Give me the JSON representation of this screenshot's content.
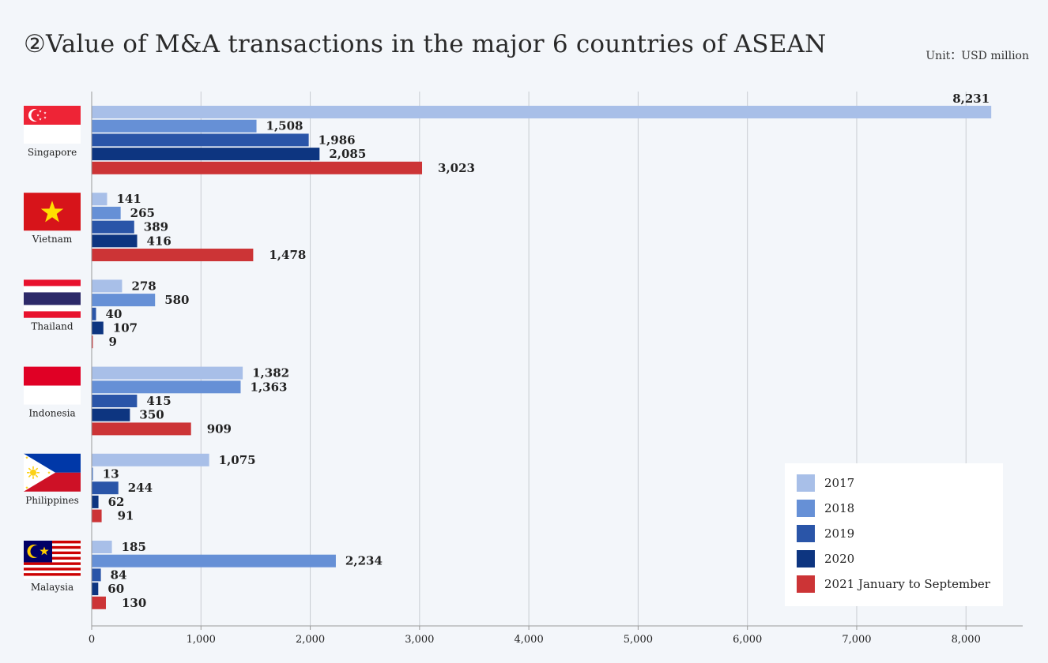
{
  "title": "②Value of M&A transactions in the major 6 countries of ASEAN",
  "unit": "Unit：USD million",
  "colors": {
    "2017": "#a8bfe8",
    "2018": "#6690d6",
    "2019": "#2a55a8",
    "2020": "#0d3580",
    "2021": "#cc3436",
    "grid": "#c8ccd2",
    "axis": "#999999"
  },
  "chart_data": {
    "type": "bar",
    "orientation": "horizontal",
    "title": "②Value of M&A transactions in the major 6 countries of ASEAN",
    "xlabel": "",
    "ylabel": "",
    "unit": "Unit：USD million",
    "xlim": [
      0,
      8500
    ],
    "xticks": [
      0,
      1000,
      2000,
      3000,
      4000,
      5000,
      6000,
      7000,
      8000
    ],
    "xtick_labels": [
      "0",
      "1,000",
      "2,000",
      "3,000",
      "4,000",
      "5,000",
      "6,000",
      "7,000",
      "8,000"
    ],
    "grid": true,
    "legend_position": "bottom-right",
    "categories": [
      "Singapore",
      "Vietnam",
      "Thailand",
      "Indonesia",
      "Philippines",
      "Malaysia"
    ],
    "series": [
      {
        "name": "2017",
        "color": "#a8bfe8",
        "values": [
          8231,
          141,
          278,
          1382,
          1075,
          185
        ],
        "labels": [
          "8,231",
          "141",
          "278",
          "1,382",
          "1,075",
          "185"
        ]
      },
      {
        "name": "2018",
        "color": "#6690d6",
        "values": [
          1508,
          265,
          580,
          1363,
          13,
          2234
        ],
        "labels": [
          "1,508",
          "265",
          "580",
          "1,363",
          "13",
          "2,234"
        ]
      },
      {
        "name": "2019",
        "color": "#2a55a8",
        "values": [
          1986,
          389,
          40,
          415,
          244,
          84
        ],
        "labels": [
          "1,986",
          "389",
          "40",
          "415",
          "244",
          "84"
        ]
      },
      {
        "name": "2020",
        "color": "#0d3580",
        "values": [
          2085,
          416,
          107,
          350,
          62,
          60
        ],
        "labels": [
          "2,085",
          "416",
          "107",
          "350",
          "62",
          "60"
        ]
      },
      {
        "name": "2021 January to September",
        "color": "#cc3436",
        "values": [
          3023,
          1478,
          9,
          909,
          91,
          130
        ],
        "labels": [
          "3,023",
          "1,478",
          "9",
          "909",
          "91",
          "130"
        ]
      }
    ]
  },
  "flags": {
    "Singapore": "singapore-flag-icon",
    "Vietnam": "vietnam-flag-icon",
    "Thailand": "thailand-flag-icon",
    "Indonesia": "indonesia-flag-icon",
    "Philippines": "philippines-flag-icon",
    "Malaysia": "malaysia-flag-icon"
  }
}
